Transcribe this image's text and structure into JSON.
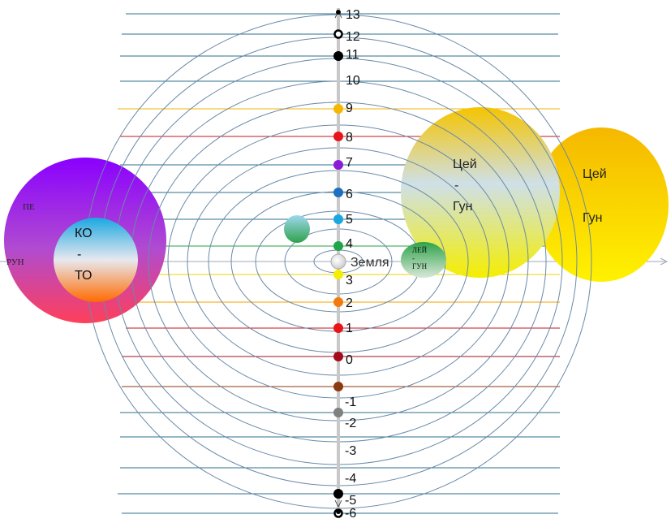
{
  "levels": [
    {
      "label": "13",
      "line": "#2e6f8e",
      "dot": "#000000",
      "dot_style": "small"
    },
    {
      "label": "12",
      "line": "#2e6f8e",
      "dot": "#000000",
      "dot_style": "ring"
    },
    {
      "label": "11",
      "line": "#2e6f8e",
      "dot": "#000000",
      "dot_style": "solid"
    },
    {
      "label": "10",
      "line": "#2e6f8e",
      "dot": "",
      "dot_style": "none"
    },
    {
      "label": "9",
      "line": "#f0b400",
      "dot": "#f5b800",
      "dot_style": "solid"
    },
    {
      "label": "8",
      "line": "#c0181c",
      "dot": "#e8141a",
      "dot_style": "solid"
    },
    {
      "label": "7",
      "line": "#2e6f8e",
      "dot": "#8b1bd6",
      "dot_style": "solid"
    },
    {
      "label": "6",
      "line": "#2e6f8e",
      "dot": "#1f6fc0",
      "dot_style": "solid"
    },
    {
      "label": "5",
      "line": "#2e6f8e",
      "dot": "#1aa7e0",
      "dot_style": "solid"
    },
    {
      "label": "4",
      "line": "#2ea24a",
      "dot": "#1fa54a",
      "dot_style": "solid"
    },
    {
      "label": "3",
      "line": "#f0d000",
      "dot": "#f5ee00",
      "dot_style": "solid"
    },
    {
      "label": "2",
      "line": "#f5a000",
      "dot": "#f07a10",
      "dot_style": "solid"
    },
    {
      "label": "1",
      "line": "#c0181c",
      "dot": "#e8141a",
      "dot_style": "solid"
    },
    {
      "label": "0",
      "line": "#a01020",
      "dot": "#a50a1a",
      "dot_style": "solid"
    },
    {
      "label": "",
      "line": "#8b3a10",
      "dot": "#8b3a10",
      "dot_style": "solid"
    },
    {
      "label": "-1",
      "line": "#2e6f8e",
      "dot": "#808080",
      "dot_style": "solid"
    },
    {
      "label": "-2",
      "line": "#2e6f8e",
      "dot": "",
      "dot_style": "none"
    },
    {
      "label": "-3",
      "line": "#2e6f8e",
      "dot": "",
      "dot_style": "none"
    },
    {
      "label": "-4",
      "line": "#2e6f8e",
      "dot": "#000000",
      "dot_style": "solid"
    },
    {
      "label": "-5",
      "line": "#2e6f8e",
      "dot": "#000000",
      "dot_style": "ring"
    },
    {
      "label": "-6",
      "line": "#2e6f8e",
      "dot": "#000000",
      "dot_style": "small"
    }
  ],
  "center": {
    "label": "Земля",
    "color": "#c8c8c8"
  },
  "left_sphere": {
    "outer_top_label": "ПЕ",
    "outer_bottom_label": "РУН",
    "inner_lines": [
      "КО",
      "-",
      "ТО"
    ],
    "colors": {
      "outer_top": "#8a00ff",
      "outer_bottom": "#ff3f5a",
      "inner_top": "#1aa7e0",
      "inner_bottom": "#ff6a00"
    }
  },
  "small_blue_sphere": {
    "colors": {
      "top": "#9fd8f0",
      "bottom": "#2ea24a"
    }
  },
  "small_green_sphere": {
    "lines": [
      "ЛЕЙ",
      "-",
      "ГУН"
    ],
    "colors": {
      "top": "#2ea24a",
      "bottom": "#d8e8d8"
    }
  },
  "right_sphere_a": {
    "lines": [
      "Цей",
      "-",
      "Гун"
    ],
    "colors": {
      "top": "#f5c400",
      "mid": "#cfe0e8",
      "bottom": "#f5ee00"
    }
  },
  "right_sphere_b": {
    "lines": [
      "Цей",
      "Гун"
    ],
    "colors": {
      "top": "#f5b800",
      "bottom": "#fff200"
    }
  },
  "orbit_color": "#6a8aa8"
}
